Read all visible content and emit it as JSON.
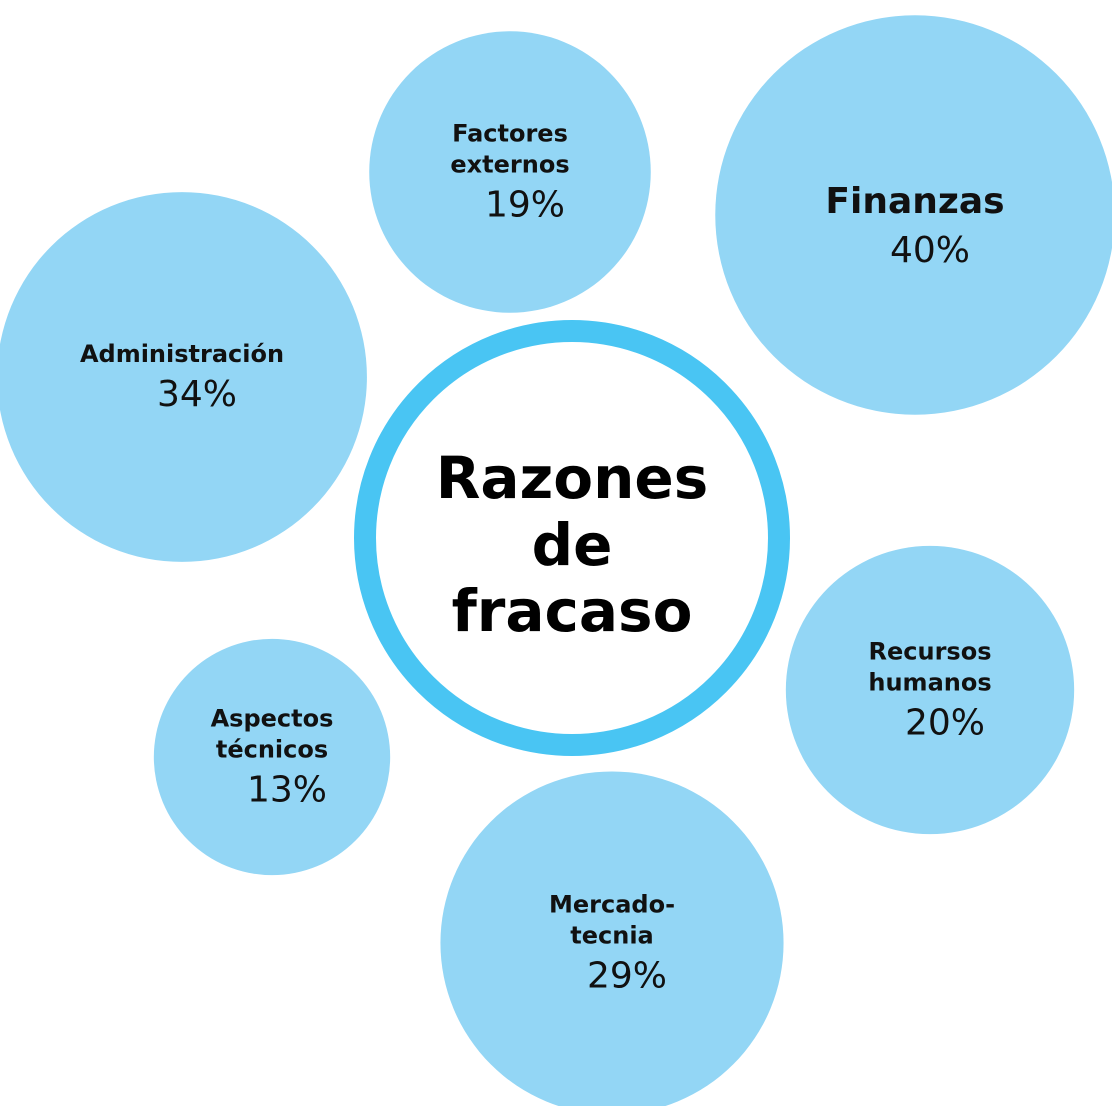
{
  "chart_data": {
    "type": "bubble",
    "title": "Razones\nde\nfracaso",
    "categories": [
      "Factores\nexternos",
      "Finanzas",
      "Administración",
      "Recursos\nhumanos",
      "Aspectos\ntécnicos",
      "Mercado-\ntecnia"
    ],
    "values": [
      19,
      40,
      34,
      20,
      13,
      29
    ],
    "value_labels": [
      "19%",
      "40%",
      "34%",
      "20%",
      "13%",
      "29%"
    ],
    "color": "#93d6f5",
    "ring_color": "#49c5f3"
  }
}
